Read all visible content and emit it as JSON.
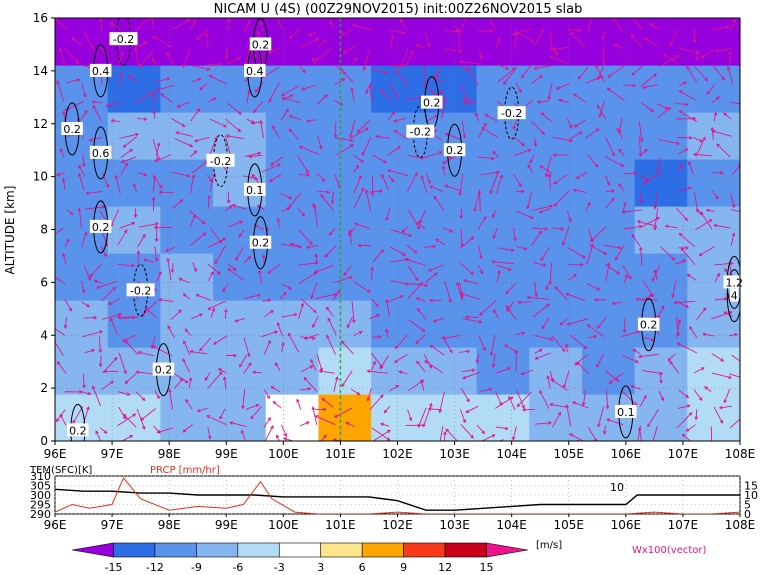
{
  "chart_data": [
    {
      "type": "heatmap",
      "title": "NICAM U (4S) (00Z29NOV2015) init:00Z26NOV2015 slab",
      "xlabel": "",
      "ylabel": "ALTITUDE [km]",
      "xlim": [
        96,
        108
      ],
      "ylim": [
        0,
        16
      ],
      "x_ticks": [
        "96E",
        "97E",
        "98E",
        "99E",
        "100E",
        "101E",
        "102E",
        "103E",
        "104E",
        "105E",
        "106E",
        "107E",
        "108E"
      ],
      "y_ticks": [
        "0",
        "2",
        "4",
        "6",
        "8",
        "10",
        "12",
        "14",
        "16"
      ],
      "grid": true,
      "reference_line_x": 101,
      "field": [
        [
          -3,
          -3,
          -6,
          -6,
          3,
          9,
          -3,
          -3,
          -3,
          -6,
          -6,
          -6,
          -3
        ],
        [
          -6,
          -6,
          -6,
          -6,
          -6,
          -3,
          -6,
          -6,
          -9,
          -6,
          -9,
          -6,
          -3
        ],
        [
          -6,
          -9,
          -6,
          -6,
          -6,
          -6,
          -9,
          -9,
          -9,
          -9,
          -9,
          -9,
          -6
        ],
        [
          -9,
          -9,
          -6,
          -9,
          -9,
          -9,
          -9,
          -9,
          -9,
          -9,
          -9,
          -9,
          -6
        ],
        [
          -9,
          -6,
          -9,
          -9,
          -9,
          -9,
          -9,
          -9,
          -9,
          -9,
          -9,
          -6,
          -6
        ],
        [
          -9,
          -9,
          -9,
          -6,
          -9,
          -9,
          -9,
          -9,
          -9,
          -9,
          -9,
          -12,
          -9
        ],
        [
          -9,
          -6,
          -6,
          -6,
          -9,
          -9,
          -9,
          -9,
          -9,
          -9,
          -9,
          -9,
          -6
        ],
        [
          -9,
          -12,
          -9,
          -9,
          -9,
          -9,
          -12,
          -12,
          -9,
          -9,
          -9,
          -9,
          -9
        ],
        [
          -15,
          -15,
          -15,
          -15,
          -15,
          -15,
          -15,
          -15,
          -15,
          -15,
          -15,
          -15,
          -15
        ]
      ],
      "contour_labels": [
        {
          "lon": 97.2,
          "alt": 15.2,
          "text": "-0.2"
        },
        {
          "lon": 99.6,
          "alt": 15.0,
          "text": "0.2"
        },
        {
          "lon": 96.8,
          "alt": 14.0,
          "text": "0.4"
        },
        {
          "lon": 99.5,
          "alt": 14.0,
          "text": "0.4"
        },
        {
          "lon": 96.3,
          "alt": 11.8,
          "text": "0.2"
        },
        {
          "lon": 96.8,
          "alt": 10.9,
          "text": "0.6"
        },
        {
          "lon": 98.9,
          "alt": 10.6,
          "text": "-0.2"
        },
        {
          "lon": 99.5,
          "alt": 9.5,
          "text": "0.1"
        },
        {
          "lon": 96.8,
          "alt": 8.1,
          "text": "0.2"
        },
        {
          "lon": 99.6,
          "alt": 7.5,
          "text": "0.2"
        },
        {
          "lon": 97.5,
          "alt": 5.7,
          "text": "-0.2"
        },
        {
          "lon": 97.9,
          "alt": 2.7,
          "text": "0.2"
        },
        {
          "lon": 96.4,
          "alt": 0.4,
          "text": "0.2"
        },
        {
          "lon": 102.6,
          "alt": 12.8,
          "text": "0.2"
        },
        {
          "lon": 102.4,
          "alt": 11.7,
          "text": "-0.2"
        },
        {
          "lon": 103.0,
          "alt": 11.0,
          "text": "0.2"
        },
        {
          "lon": 104.0,
          "alt": 12.4,
          "text": "-0.2"
        },
        {
          "lon": 106.4,
          "alt": 4.4,
          "text": "0.2"
        },
        {
          "lon": 106.0,
          "alt": 1.1,
          "text": "0.1"
        },
        {
          "lon": 107.9,
          "alt": 6.0,
          "text": "1.2"
        },
        {
          "lon": 107.9,
          "alt": 5.5,
          "text": "4"
        }
      ]
    },
    {
      "type": "line",
      "series": [
        {
          "name": "TEM(SFC)[K]",
          "color": "#000000",
          "x": [
            96,
            96.5,
            97,
            97.5,
            98,
            98.5,
            99,
            99.5,
            100,
            100.5,
            101,
            101.5,
            102,
            102.5,
            103,
            103.5,
            104,
            104.5,
            105,
            105.5,
            106,
            106.2,
            106.5,
            107,
            107.5,
            108
          ],
          "values": [
            303,
            302,
            302,
            301,
            301,
            300,
            300,
            300,
            299,
            299,
            299,
            299,
            297,
            292,
            292,
            293,
            294,
            295,
            295,
            295,
            295,
            300,
            300,
            300,
            300,
            300
          ]
        },
        {
          "name": "PRCP [mm/hr]",
          "color": "#e03020",
          "x": [
            96,
            96.3,
            96.6,
            97,
            97.2,
            97.5,
            98,
            98.5,
            99,
            99.3,
            99.6,
            99.8,
            100.2,
            100.6,
            101,
            101.5,
            102,
            102.5,
            103,
            103.5,
            104,
            104.5,
            105,
            105.5,
            106,
            106.5,
            107,
            107.5,
            108
          ],
          "values": [
            1,
            5,
            3,
            5,
            19,
            8,
            2,
            4,
            3,
            5,
            17,
            8,
            1,
            0,
            0,
            0,
            1,
            0,
            0,
            0,
            0,
            0,
            0,
            0,
            0,
            1,
            0,
            0,
            1
          ]
        }
      ],
      "ylim_left": [
        290,
        310
      ],
      "y_ticks_left": [
        "290",
        "295",
        "300",
        "305",
        "310"
      ],
      "ylim_right": [
        0,
        20
      ],
      "y_ticks_right": [
        "0",
        "5",
        "10",
        "15"
      ],
      "x_ticks": [
        "96E",
        "97E",
        "98E",
        "99E",
        "100E",
        "101E",
        "102E",
        "103E",
        "104E",
        "105E",
        "106E",
        "107E",
        "108E"
      ],
      "annotation": "10"
    }
  ],
  "colorbar": {
    "levels": [
      "-15",
      "-12",
      "-9",
      "-6",
      "-3",
      "3",
      "6",
      "9",
      "12",
      "15"
    ],
    "colors": [
      "#9600dc",
      "#2d6ee6",
      "#5a93ec",
      "#86b6f0",
      "#b2dcf6",
      "#ffffff",
      "#fde58c",
      "#fea500",
      "#f73a1a",
      "#c8001a",
      "#f0148c"
    ],
    "unit": "[m/s]",
    "vector_label": "Wx100(vector)"
  }
}
